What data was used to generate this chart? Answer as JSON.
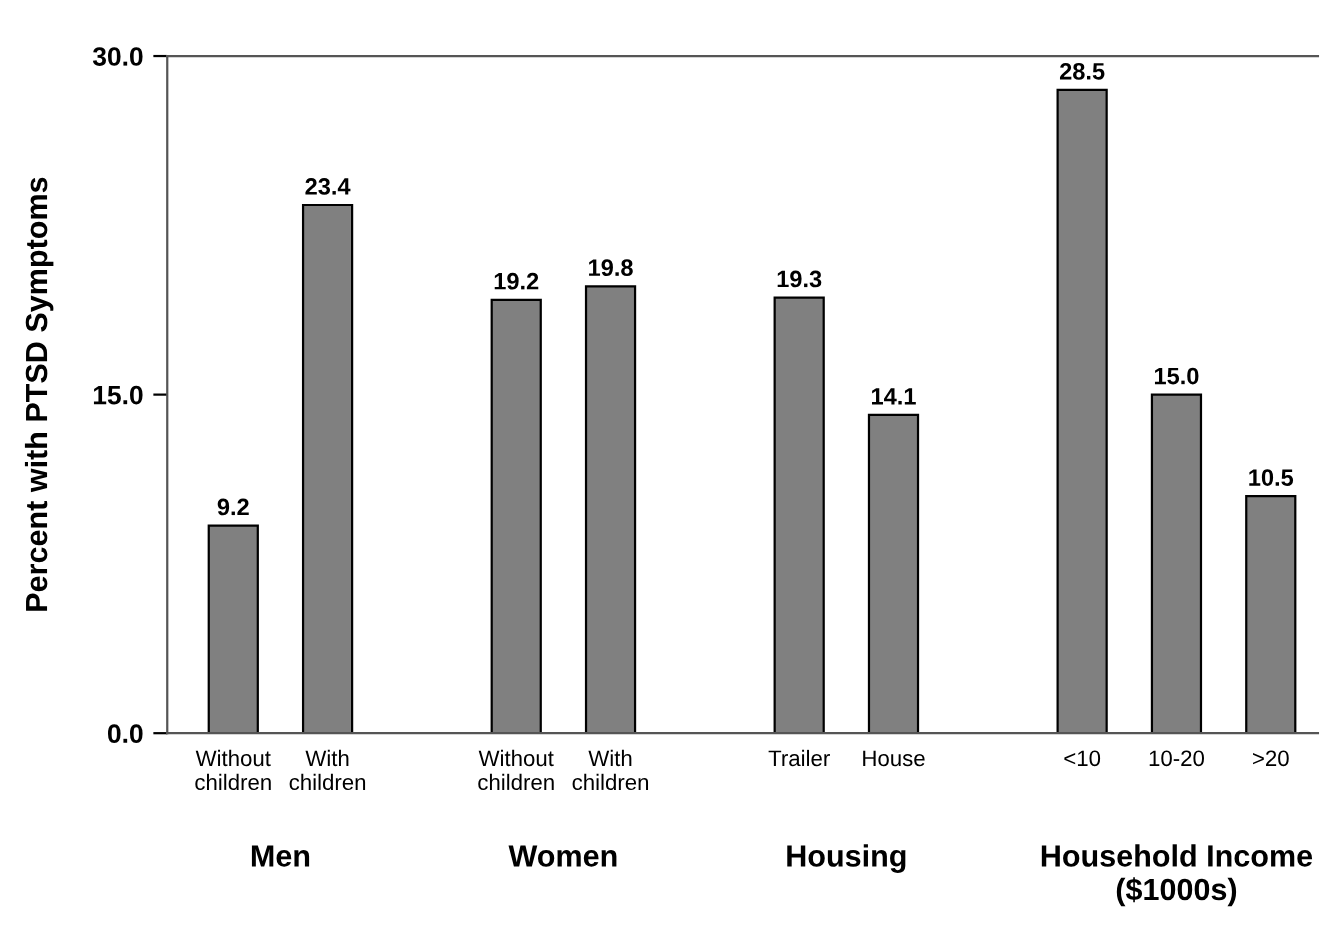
{
  "chart_data": {
    "type": "bar",
    "ylabel": "Percent with PTSD Symptoms",
    "categories": [
      "Without\nchildren",
      "With\nchildren",
      null,
      "Without\nchildren",
      "With\nchildren",
      null,
      "Trailer",
      "House",
      null,
      "<10",
      "10-20",
      ">20"
    ],
    "values": [
      9.2,
      23.4,
      null,
      19.2,
      19.8,
      null,
      19.3,
      14.1,
      null,
      28.5,
      15.0,
      10.5
    ],
    "value_labels": [
      "9.2",
      "23.4",
      null,
      "19.2",
      "19.8",
      null,
      "19.3",
      "14.1",
      null,
      "28.5",
      "15.0",
      "10.5"
    ],
    "color": "#808080",
    "ylim": [
      0,
      30
    ],
    "yticks": [
      {
        "value": 0,
        "label": "0.0"
      },
      {
        "value": 15,
        "label": "15.0"
      },
      {
        "value": 30,
        "label": "30.0"
      }
    ],
    "grid": false,
    "annotations": [
      "Men",
      "Women",
      "Housing",
      "Household Income\n($1000s)"
    ]
  }
}
